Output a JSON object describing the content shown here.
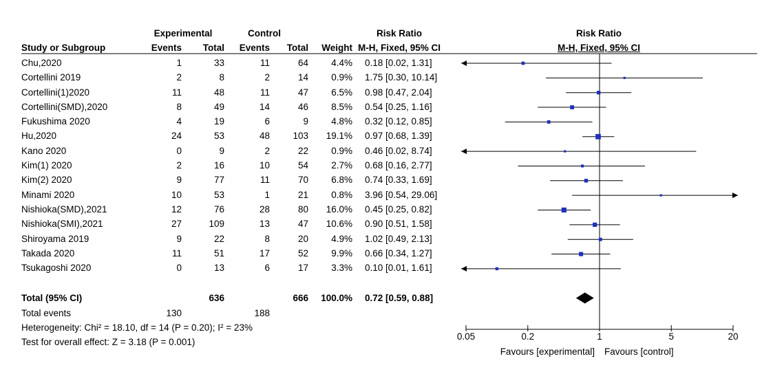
{
  "header": {
    "group_experimental": "Experimental",
    "group_control": "Control",
    "rr_table": "Risk Ratio",
    "rr_plot": "Risk Ratio",
    "col_study": "Study or Subgroup",
    "col_exp_events": "Events",
    "col_exp_total": "Total",
    "col_ctl_events": "Events",
    "col_ctl_total": "Total",
    "col_weight": "Weight",
    "col_method_table": "M-H, Fixed, 95% CI",
    "col_method_plot": "M-H, Fixed, 95% CI"
  },
  "studies": [
    {
      "name": "Chu,2020",
      "e_events": "1",
      "e_total": "33",
      "c_events": "11",
      "c_total": "64",
      "weight": "4.4%",
      "ci_text": "0.18 [0.02, 1.31]"
    },
    {
      "name": "Cortellini 2019",
      "e_events": "2",
      "e_total": "8",
      "c_events": "2",
      "c_total": "14",
      "weight": "0.9%",
      "ci_text": "1.75 [0.30, 10.14]"
    },
    {
      "name": "Cortellini(1)2020",
      "e_events": "11",
      "e_total": "48",
      "c_events": "11",
      "c_total": "47",
      "weight": "6.5%",
      "ci_text": "0.98 [0.47, 2.04]"
    },
    {
      "name": "Cortellini(SMD),2020",
      "e_events": "8",
      "e_total": "49",
      "c_events": "14",
      "c_total": "46",
      "weight": "8.5%",
      "ci_text": "0.54 [0.25, 1.16]"
    },
    {
      "name": "Fukushima 2020",
      "e_events": "4",
      "e_total": "19",
      "c_events": "6",
      "c_total": "9",
      "weight": "4.8%",
      "ci_text": "0.32 [0.12, 0.85]"
    },
    {
      "name": "Hu,2020",
      "e_events": "24",
      "e_total": "53",
      "c_events": "48",
      "c_total": "103",
      "weight": "19.1%",
      "ci_text": "0.97 [0.68, 1.39]"
    },
    {
      "name": "Kano 2020",
      "e_events": "0",
      "e_total": "9",
      "c_events": "2",
      "c_total": "22",
      "weight": "0.9%",
      "ci_text": "0.46 [0.02, 8.74]"
    },
    {
      "name": "Kim(1) 2020",
      "e_events": "2",
      "e_total": "16",
      "c_events": "10",
      "c_total": "54",
      "weight": "2.7%",
      "ci_text": "0.68 [0.16, 2.77]"
    },
    {
      "name": "Kim(2) 2020",
      "e_events": "9",
      "e_total": "77",
      "c_events": "11",
      "c_total": "70",
      "weight": "6.8%",
      "ci_text": "0.74 [0.33, 1.69]"
    },
    {
      "name": "Minami 2020",
      "e_events": "10",
      "e_total": "53",
      "c_events": "1",
      "c_total": "21",
      "weight": "0.8%",
      "ci_text": "3.96 [0.54, 29.06]"
    },
    {
      "name": "Nishioka(SMD),2021",
      "e_events": "12",
      "e_total": "76",
      "c_events": "28",
      "c_total": "80",
      "weight": "16.0%",
      "ci_text": "0.45 [0.25, 0.82]"
    },
    {
      "name": "Nishioka(SMI),2021",
      "e_events": "27",
      "e_total": "109",
      "c_events": "13",
      "c_total": "47",
      "weight": "10.6%",
      "ci_text": "0.90 [0.51, 1.58]"
    },
    {
      "name": "Shiroyama 2019",
      "e_events": "9",
      "e_total": "22",
      "c_events": "8",
      "c_total": "20",
      "weight": "4.9%",
      "ci_text": "1.02 [0.49, 2.13]"
    },
    {
      "name": "Takada 2020",
      "e_events": "11",
      "e_total": "51",
      "c_events": "17",
      "c_total": "52",
      "weight": "9.9%",
      "ci_text": "0.66 [0.34, 1.27]"
    },
    {
      "name": "Tsukagoshi 2020",
      "e_events": "0",
      "e_total": "13",
      "c_events": "6",
      "c_total": "17",
      "weight": "3.3%",
      "ci_text": "0.10 [0.01, 1.61]"
    }
  ],
  "total": {
    "label": "Total (95% CI)",
    "e_total": "636",
    "c_total": "666",
    "weight": "100.0%",
    "ci_text": "0.72 [0.59, 0.88]"
  },
  "total_events": {
    "label": "Total events",
    "e_events": "130",
    "c_events": "188"
  },
  "heterogeneity": "Heterogeneity: Chi² = 18.10, df = 14 (P = 0.20); I² = 23%",
  "overall_effect": "Test for overall effect: Z = 3.18 (P = 0.001)",
  "axis": {
    "tick_labels": [
      "0.05",
      "0.2",
      "1",
      "5",
      "20"
    ],
    "favours_left": "Favours [experimental]",
    "favours_right": "Favours [control]"
  },
  "chart_data": {
    "type": "forest",
    "scale": "log",
    "xlim": [
      0.05,
      20
    ],
    "null_value": 1,
    "ticks": [
      0.05,
      0.2,
      1,
      5,
      20
    ],
    "studies": [
      {
        "name": "Chu,2020",
        "rr": 0.18,
        "lo": 0.02,
        "hi": 1.31,
        "weight": 4.4
      },
      {
        "name": "Cortellini 2019",
        "rr": 1.75,
        "lo": 0.3,
        "hi": 10.14,
        "weight": 0.9
      },
      {
        "name": "Cortellini(1)2020",
        "rr": 0.98,
        "lo": 0.47,
        "hi": 2.04,
        "weight": 6.5
      },
      {
        "name": "Cortellini(SMD),2020",
        "rr": 0.54,
        "lo": 0.25,
        "hi": 1.16,
        "weight": 8.5
      },
      {
        "name": "Fukushima 2020",
        "rr": 0.32,
        "lo": 0.12,
        "hi": 0.85,
        "weight": 4.8
      },
      {
        "name": "Hu,2020",
        "rr": 0.97,
        "lo": 0.68,
        "hi": 1.39,
        "weight": 19.1
      },
      {
        "name": "Kano 2020",
        "rr": 0.46,
        "lo": 0.02,
        "hi": 8.74,
        "weight": 0.9
      },
      {
        "name": "Kim(1) 2020",
        "rr": 0.68,
        "lo": 0.16,
        "hi": 2.77,
        "weight": 2.7
      },
      {
        "name": "Kim(2) 2020",
        "rr": 0.74,
        "lo": 0.33,
        "hi": 1.69,
        "weight": 6.8
      },
      {
        "name": "Minami 2020",
        "rr": 3.96,
        "lo": 0.54,
        "hi": 29.06,
        "weight": 0.8
      },
      {
        "name": "Nishioka(SMD),2021",
        "rr": 0.45,
        "lo": 0.25,
        "hi": 0.82,
        "weight": 16.0
      },
      {
        "name": "Nishioka(SMI),2021",
        "rr": 0.9,
        "lo": 0.51,
        "hi": 1.58,
        "weight": 10.6
      },
      {
        "name": "Shiroyama 2019",
        "rr": 1.02,
        "lo": 0.49,
        "hi": 2.13,
        "weight": 4.9
      },
      {
        "name": "Takada 2020",
        "rr": 0.66,
        "lo": 0.34,
        "hi": 1.27,
        "weight": 9.9
      },
      {
        "name": "Tsukagoshi 2020",
        "rr": 0.1,
        "lo": 0.01,
        "hi": 1.61,
        "weight": 3.3
      }
    ],
    "pooled": {
      "rr": 0.72,
      "lo": 0.59,
      "hi": 0.88
    },
    "colors": {
      "marker": "#1f2fbf",
      "line": "#000000",
      "diamond": "#000000"
    }
  }
}
